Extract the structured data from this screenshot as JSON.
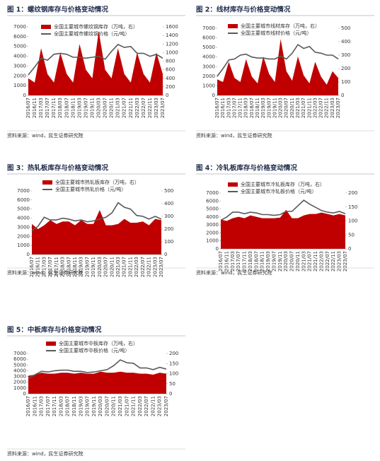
{
  "chart_data": [
    {
      "type": "combo",
      "title": "图 1：螺纹钢库存与价格变动情况",
      "source": "资料来源：wind，民生证券研究院",
      "categories": [
        "2016/07",
        "2016/11",
        "2017/03",
        "2017/07",
        "2017/11",
        "2018/03",
        "2018/07",
        "2018/11",
        "2019/03",
        "2019/07",
        "2019/11",
        "2020/03",
        "2020/07",
        "2020/11",
        "2021/03",
        "2021/07",
        "2021/11",
        "2022/03",
        "2022/07",
        "2022/11",
        "2023/03",
        "2023/07"
      ],
      "ylim": [
        0,
        7000
      ],
      "yticks": [
        0,
        1000,
        2000,
        3000,
        4000,
        5000,
        6000,
        7000
      ],
      "y2lim": [
        0,
        1600
      ],
      "y2ticks": [
        0,
        200,
        400,
        600,
        800,
        1000,
        1200,
        1400,
        1600
      ],
      "series": [
        {
          "name": "全国主要城市螺纹钢库存（万吨，右）",
          "color": "#c00000",
          "axis": "y2",
          "values": [
            400,
            300,
            1100,
            500,
            300,
            1000,
            500,
            300,
            1200,
            600,
            400,
            1500,
            600,
            400,
            1100,
            500,
            300,
            1000,
            500,
            300,
            1000,
            500
          ]
        },
        {
          "name": "全国主要城市螺纹钢价格（元/吨）",
          "color": "#595959",
          "values": [
            2100,
            2900,
            3800,
            3600,
            4200,
            4300,
            4200,
            3900,
            3900,
            3800,
            3900,
            4000,
            3700,
            4500,
            5200,
            4900,
            5000,
            4300,
            4300,
            4000,
            4200,
            3800
          ]
        }
      ]
    },
    {
      "type": "combo",
      "title": "图 2：线材库存与价格变动情况",
      "source": "资料来源：wind，民生证券研究院",
      "categories": [
        "2016/07",
        "2016/11",
        "2017/03",
        "2017/07",
        "2017/11",
        "2018/03",
        "2018/07",
        "2018/11",
        "2019/03",
        "2019/07",
        "2019/11",
        "2020/03",
        "2020/07",
        "2020/11",
        "2021/03",
        "2021/07",
        "2021/11",
        "2022/03",
        "2022/07",
        "2022/11",
        "2023/03",
        "2023/07"
      ],
      "ylim": [
        0,
        7000
      ],
      "yticks": [
        0,
        1000,
        2000,
        3000,
        4000,
        5000,
        6000,
        7000
      ],
      "y2lim": [
        0,
        500
      ],
      "y2ticks": [
        0,
        100,
        200,
        300,
        400,
        500
      ],
      "series": [
        {
          "name": "全国主要城市线材库存（万吨，右）",
          "color": "#c00000",
          "axis": "y2",
          "values": [
            120,
            100,
            250,
            130,
            100,
            270,
            140,
            90,
            290,
            160,
            100,
            420,
            180,
            110,
            290,
            150,
            90,
            250,
            140,
            80,
            180,
            130
          ]
        },
        {
          "name": "全国主要城市线材价格（元/吨）",
          "color": "#595959",
          "values": [
            2000,
            2800,
            3700,
            3800,
            4200,
            4300,
            4000,
            3900,
            3900,
            3800,
            3800,
            4100,
            3800,
            4400,
            5300,
            4900,
            5100,
            4500,
            4400,
            4200,
            4200,
            3800
          ]
        }
      ]
    },
    {
      "type": "combo",
      "title": "图 3：热轧板库存与价格变动情况",
      "source": "资料来源：wind，民生证券研究院",
      "categories": [
        "2016/07",
        "2016/11",
        "2017/03",
        "2017/07",
        "2017/11",
        "2018/03",
        "2018/07",
        "2018/11",
        "2019/03",
        "2019/07",
        "2019/11",
        "2020/03",
        "2020/07",
        "2020/11",
        "2021/03",
        "2021/07",
        "2021/11",
        "2022/03",
        "2022/07",
        "2022/11",
        "2023/03",
        "2023/07"
      ],
      "ylim": [
        0,
        7000
      ],
      "yticks": [
        0,
        1000,
        2000,
        3000,
        4000,
        5000,
        6000,
        7000
      ],
      "y2lim": [
        0,
        500
      ],
      "y2ticks": [
        0,
        100,
        200,
        300,
        400,
        500
      ],
      "series": [
        {
          "name": "全国主要城市热轧板库存（万吨，右）",
          "color": "#c00000",
          "axis": "y2",
          "values": [
            240,
            200,
            230,
            270,
            240,
            260,
            260,
            230,
            270,
            240,
            240,
            350,
            230,
            230,
            240,
            280,
            250,
            250,
            260,
            230,
            280,
            270
          ]
        },
        {
          "name": "全国主要城市热轧价格（元/吨）",
          "color": "#595959",
          "values": [
            2600,
            3100,
            4100,
            3800,
            3800,
            4000,
            3900,
            3700,
            3800,
            3600,
            3700,
            3900,
            4100,
            4600,
            5700,
            5200,
            5000,
            4300,
            4200,
            3900,
            4200,
            3900
          ]
        }
      ]
    },
    {
      "type": "combo",
      "title": "图 4：冷轧板库存与价格变动情况",
      "source": "资料来源：wind，民生证券研究院",
      "categories": [
        "2016/07",
        "2016/11",
        "2017/03",
        "2017/07",
        "2017/11",
        "2018/03",
        "2018/07",
        "2018/11",
        "2019/03",
        "2019/07",
        "2019/11",
        "2020/03",
        "2020/07",
        "2020/11",
        "2021/03",
        "2021/07",
        "2021/11",
        "2022/03",
        "2022/07",
        "2022/11",
        "2023/03",
        "2023/07"
      ],
      "ylim": [
        0,
        7000
      ],
      "yticks": [
        0,
        1000,
        2000,
        3000,
        4000,
        5000,
        6000,
        7000
      ],
      "y2lim": [
        0,
        200
      ],
      "y2ticks": [
        0,
        50,
        100,
        150,
        200
      ],
      "series": [
        {
          "name": "全国主要城市冷轧板库存（万吨，右）",
          "color": "#c00000",
          "axis": "y2",
          "values": [
            105,
            100,
            110,
            115,
            110,
            120,
            115,
            110,
            110,
            110,
            112,
            140,
            110,
            110,
            120,
            125,
            125,
            130,
            125,
            120,
            125,
            120
          ]
        },
        {
          "name": "全国主要城市冷轧板价格（元/吨）",
          "color": "#595959",
          "values": [
            3600,
            4000,
            4600,
            4600,
            4400,
            4600,
            4500,
            4300,
            4300,
            4200,
            4300,
            4700,
            4700,
            5400,
            6100,
            5600,
            5200,
            4800,
            4600,
            4500,
            4700,
            4400
          ]
        }
      ]
    },
    {
      "type": "combo",
      "title": "图 5：中板库存与价格变动情况",
      "source": "资料来源：wind，民生证券研究院",
      "categories": [
        "2016/07",
        "2016/11",
        "2017/03",
        "2017/07",
        "2017/11",
        "2018/03",
        "2018/07",
        "2018/11",
        "2019/03",
        "2019/07",
        "2019/11",
        "2020/03",
        "2020/07",
        "2020/11",
        "2021/03",
        "2021/07",
        "2021/11",
        "2022/03",
        "2022/07",
        "2022/11",
        "2023/03",
        "2023/07"
      ],
      "ylim": [
        0,
        7000
      ],
      "yticks": [
        0,
        1000,
        2000,
        3000,
        4000,
        5000,
        6000,
        7000
      ],
      "y2lim": [
        0,
        200
      ],
      "y2ticks": [
        0,
        50,
        100,
        150,
        200
      ],
      "series": [
        {
          "name": "全国主要城市中板库存（万吨，右）",
          "color": "#c00000",
          "axis": "y2",
          "values": [
            90,
            95,
            105,
            100,
            100,
            105,
            105,
            100,
            105,
            100,
            100,
            110,
            105,
            105,
            110,
            105,
            105,
            100,
            100,
            95,
            105,
            100
          ]
        },
        {
          "name": "全国主要城市中板价格（元/吨）",
          "color": "#595959",
          "values": [
            2700,
            3300,
            3900,
            3800,
            4000,
            4100,
            4100,
            3900,
            3900,
            3700,
            3800,
            4000,
            4200,
            4900,
            5900,
            5400,
            5300,
            4500,
            4500,
            4200,
            4600,
            4300
          ]
        }
      ]
    }
  ]
}
